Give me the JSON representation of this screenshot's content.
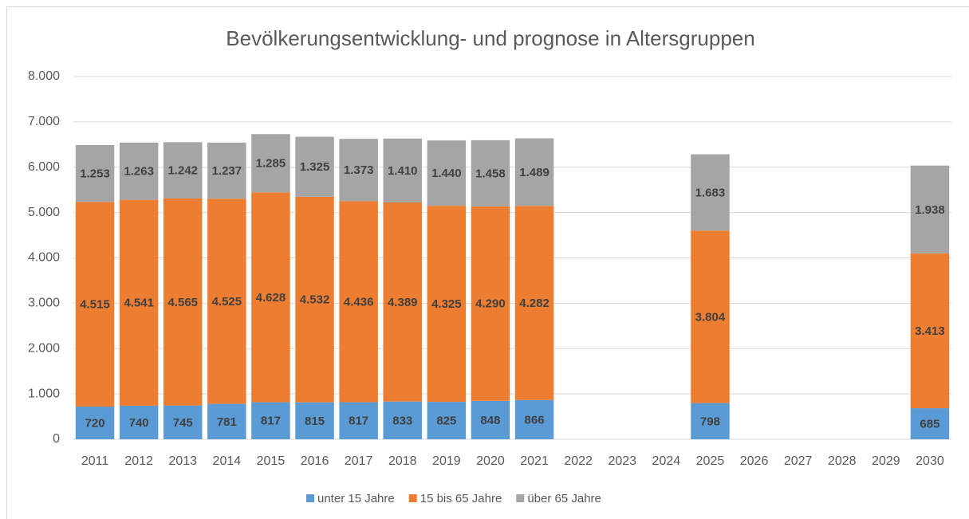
{
  "chart_data": {
    "type": "stacked_bar",
    "title": "Bevölkerungsentwicklung- und prognose in Altersgruppen",
    "categories": [
      "2011",
      "2012",
      "2013",
      "2014",
      "2015",
      "2016",
      "2017",
      "2018",
      "2019",
      "2020",
      "2021",
      "2022",
      "2023",
      "2024",
      "2025",
      "2026",
      "2027",
      "2028",
      "2029",
      "2030"
    ],
    "series": [
      {
        "name": "unter 15 Jahre",
        "color": "#5b9bd5",
        "values": [
          720,
          740,
          745,
          781,
          817,
          815,
          817,
          833,
          825,
          848,
          866,
          null,
          null,
          null,
          798,
          null,
          null,
          null,
          null,
          685
        ],
        "value_labels": [
          "720",
          "740",
          "745",
          "781",
          "817",
          "815",
          "817",
          "833",
          "825",
          "848",
          "866",
          null,
          null,
          null,
          "798",
          null,
          null,
          null,
          null,
          "685"
        ]
      },
      {
        "name": "15 bis 65 Jahre",
        "color": "#ed7d31",
        "values": [
          4515,
          4541,
          4565,
          4525,
          4628,
          4532,
          4436,
          4389,
          4325,
          4290,
          4282,
          null,
          null,
          null,
          3804,
          null,
          null,
          null,
          null,
          3413
        ],
        "value_labels": [
          "4.515",
          "4.541",
          "4.565",
          "4.525",
          "4.628",
          "4.532",
          "4.436",
          "4.389",
          "4.325",
          "4.290",
          "4.282",
          null,
          null,
          null,
          "3.804",
          null,
          null,
          null,
          null,
          "3.413"
        ]
      },
      {
        "name": "über 65 Jahre",
        "color": "#a5a5a5",
        "values": [
          1253,
          1263,
          1242,
          1237,
          1285,
          1325,
          1373,
          1410,
          1440,
          1458,
          1489,
          null,
          null,
          null,
          1683,
          null,
          null,
          null,
          null,
          1938
        ],
        "value_labels": [
          "1.253",
          "1.263",
          "1.242",
          "1.237",
          "1.285",
          "1.325",
          "1.373",
          "1.410",
          "1.440",
          "1.458",
          "1.489",
          null,
          null,
          null,
          "1.683",
          null,
          null,
          null,
          null,
          "1.938"
        ]
      }
    ],
    "ylim": [
      0,
      8000
    ],
    "yticks": [
      0,
      {
        "value": 1000,
        "label": "1.000"
      },
      {
        "value": 2000,
        "label": "2.000"
      },
      {
        "value": 3000,
        "label": "3.000"
      },
      {
        "value": 4000,
        "label": "4.000"
      },
      {
        "value": 5000,
        "label": "5.000"
      },
      {
        "value": 6000,
        "label": "6.000"
      },
      {
        "value": 7000,
        "label": "7.000"
      },
      {
        "value": 8000,
        "label": "8.000"
      }
    ],
    "grid": true,
    "legend": "bottom"
  }
}
